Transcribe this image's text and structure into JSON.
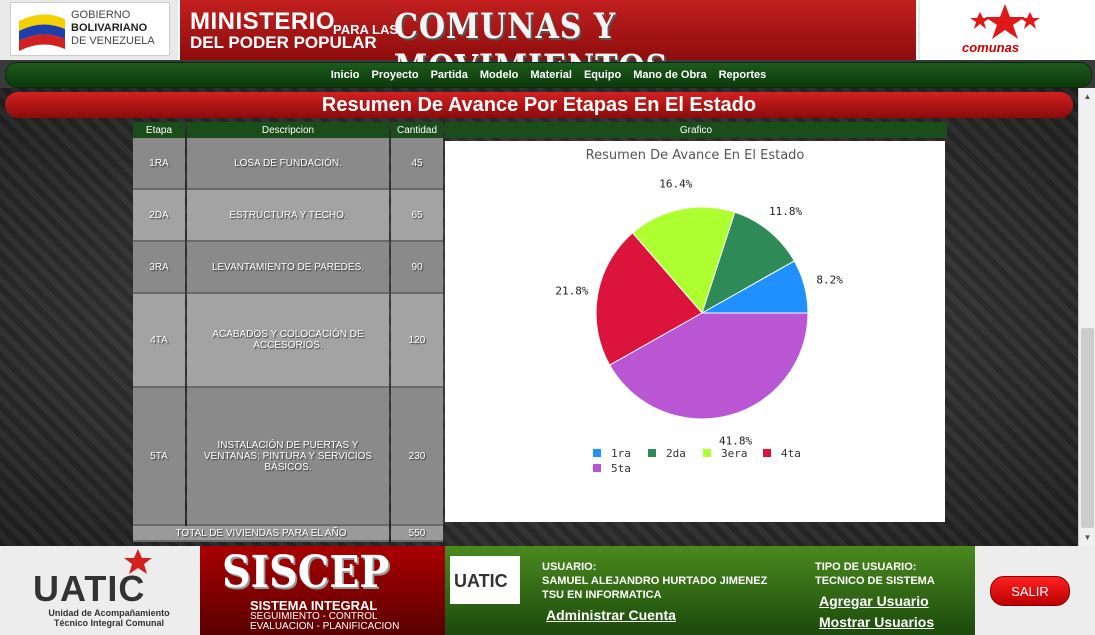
{
  "header": {
    "gob_line1": "GOBIERNO",
    "gob_line2": "BOLIVARIANO",
    "gob_line3": "DE VENEZUELA",
    "ministerio": "MINISTERIO",
    "poder": "DEL PODER POPULAR",
    "para": "PARA LAS",
    "comunas_title": "COMUNAS Y MOVIMIENTOS SOCIALES",
    "comunas_logo_text": "comunas"
  },
  "nav": {
    "items": [
      "Inicio",
      "Proyecto",
      "Partida",
      "Modelo",
      "Material",
      "Equipo",
      "Mano de Obra",
      "Reportes"
    ]
  },
  "page": {
    "title": "Resumen De Avance Por Etapas En El Estado"
  },
  "table": {
    "headers": {
      "etapa": "Etapa",
      "descripcion": "Descripcion",
      "cantidad": "Cantidad",
      "grafico": "Grafico"
    },
    "rows": [
      {
        "etapa": "1RA",
        "descripcion": "LOSA DE FUNDACIÓN.",
        "cantidad": "45"
      },
      {
        "etapa": "2DA",
        "descripcion": "ESTRUCTURA Y TECHO.",
        "cantidad": "65"
      },
      {
        "etapa": "3RA",
        "descripcion": "LEVANTAMIENTO DE PAREDES.",
        "cantidad": "90"
      },
      {
        "etapa": "4TA",
        "descripcion": "ACABADOS Y COLOCACIÓN DE ACCESORIOS.",
        "cantidad": "120"
      },
      {
        "etapa": "5TA",
        "descripcion": "INSTALACIÓN DE PUERTAS Y VENTANAS; PINTURA Y SERVICIOS BÁSICOS.",
        "cantidad": "230"
      }
    ],
    "total_label": "TOTAL DE VIVIENDAS PARA EL AÑO",
    "total_value": "550"
  },
  "chart_data": {
    "type": "pie",
    "title": "Resumen De Avance En El Estado",
    "categories": [
      "1ra",
      "2da",
      "3era",
      "4ta",
      "5ta"
    ],
    "values": [
      45,
      65,
      90,
      120,
      230
    ],
    "labels": [
      "8.2%",
      "11.8%",
      "16.4%",
      "21.8%",
      "41.8%"
    ],
    "colors": [
      "#1e90ff",
      "#2e8b57",
      "#adff2f",
      "#dc143c",
      "#ba55d3"
    ],
    "legend": "bottom"
  },
  "footer": {
    "uatic_title": "UATIC",
    "uatic_sub1": "Unidad de Acompañamiento",
    "uatic_sub2": "Técnico Integral Comunal",
    "siscep_title": "SISCEP",
    "siscep_sub": "SISTEMA INTEGRAL",
    "siscep_line1": "SEGUIMIENTO - CONTROL",
    "siscep_line2": "EVALUACION - PLANIFICACION",
    "logo2_text": "UATIC",
    "usuario_label": "USUARIO:",
    "usuario_name": "SAMUEL ALEJANDRO HURTADO JIMENEZ",
    "usuario_title": "TSU EN INFORMATICA",
    "admin_link": "Administrar Cuenta",
    "tipo_label": "TIPO DE USUARIO:",
    "tipo_value": "TECNICO DE SISTEMA",
    "agregar_link": "Agregar Usuario",
    "mostrar_link": "Mostrar Usuarios",
    "salir": "SALIR"
  }
}
